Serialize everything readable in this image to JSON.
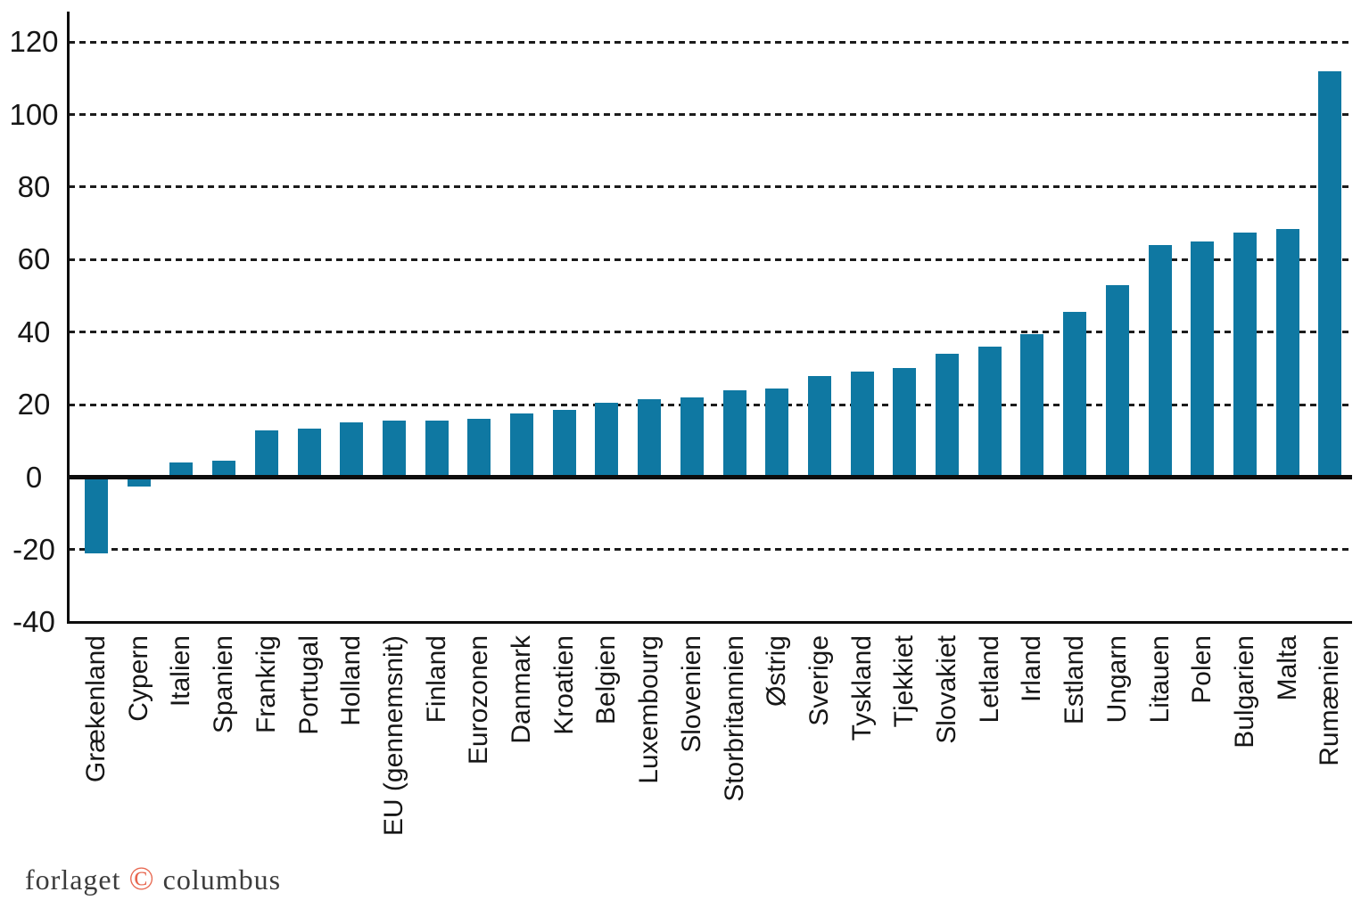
{
  "chart_data": {
    "type": "bar",
    "title": "",
    "xlabel": "",
    "ylabel": "",
    "categories": [
      "Grækenland",
      "Cypern",
      "Italien",
      "Spanien",
      "Frankrig",
      "Portugal",
      "Holland",
      "EU (gennemsnit)",
      "Finland",
      "Eurozonen",
      "Danmark",
      "Kroatien",
      "Belgien",
      "Luxembourg",
      "Slovenien",
      "Storbritannien",
      "Østrig",
      "Sverige",
      "Tyskland",
      "Tjekkiet",
      "Slovakiet",
      "Letland",
      "Irland",
      "Estland",
      "Ungarn",
      "Litauen",
      "Polen",
      "Bulgarien",
      "Malta",
      "Rumænien"
    ],
    "values": [
      -21,
      -2.5,
      4,
      4.5,
      13,
      13.5,
      15,
      15.5,
      15.5,
      16,
      17.5,
      18.5,
      20.5,
      21.5,
      22,
      24,
      24.5,
      28,
      29,
      30,
      34,
      36,
      39.5,
      45.5,
      53,
      64,
      65,
      67.5,
      68.5,
      112
    ],
    "ylim": [
      -40,
      120
    ],
    "yticks": [
      120,
      100,
      80,
      60,
      40,
      20,
      0,
      -20,
      -40
    ],
    "grid": "horizontal-dashed",
    "legend": "none",
    "bar_color": "#0f78a2"
  },
  "footer": {
    "logo_prefix": "forlaget",
    "logo_symbol": "©",
    "logo_suffix": "columbus",
    "logo_symbol_color": "#e7654d"
  }
}
